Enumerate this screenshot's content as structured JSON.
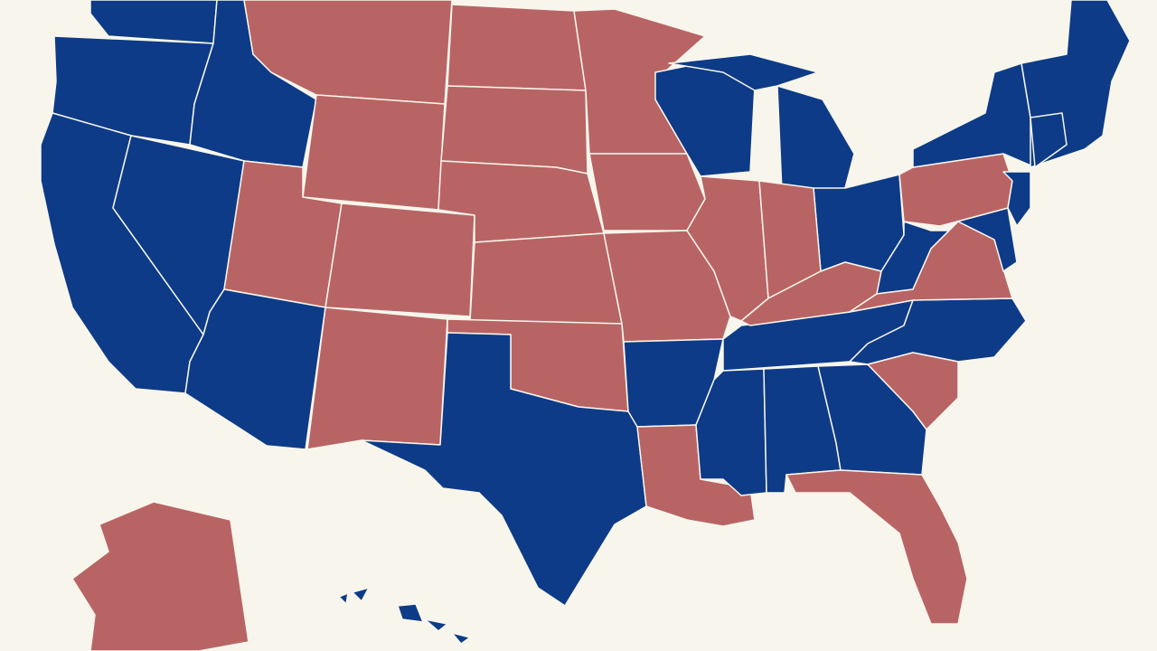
{
  "map": {
    "background": "#f8f6ec",
    "border": "#f8f6ec",
    "regions": [
      {
        "fill": "#0d3b87"
      },
      {
        "fill": "#0d3b87"
      },
      {
        "fill": "#0d3b87"
      },
      {
        "fill": "#0d3b87"
      },
      {
        "fill": "#0d3b87"
      },
      {
        "fill": "#b96464"
      },
      {
        "fill": "#b96464"
      },
      {
        "fill": "#b96464"
      },
      {
        "fill": "#0d3b87"
      },
      {
        "fill": "#b96464"
      },
      {
        "fill": "#b96464"
      },
      {
        "fill": "#b96464"
      },
      {
        "fill": "#b96464"
      },
      {
        "fill": "#b96464"
      },
      {
        "fill": "#b96464"
      },
      {
        "fill": "#b96464"
      },
      {
        "fill": "#0d3b87"
      },
      {
        "fill": "#b96464"
      },
      {
        "fill": "#b96464"
      },
      {
        "fill": "#b96464"
      },
      {
        "fill": "#0d3b87"
      },
      {
        "fill": "#b96464"
      },
      {
        "fill": "#0d3b87"
      },
      {
        "fill": "#b96464"
      },
      {
        "fill": "#0d3b87"
      },
      {
        "fill": "#0d3b87"
      },
      {
        "fill": "#b96464"
      },
      {
        "fill": "#0d3b87"
      },
      {
        "fill": "#b96464"
      },
      {
        "fill": "#0d3b87"
      },
      {
        "fill": "#0d3b87"
      },
      {
        "fill": "#0d3b87"
      },
      {
        "fill": "#0d3b87"
      },
      {
        "fill": "#b96464"
      },
      {
        "fill": "#b96464"
      },
      {
        "fill": "#0d3b87"
      },
      {
        "fill": "#b96464"
      },
      {
        "fill": "#0d3b87"
      },
      {
        "fill": "#b96464"
      },
      {
        "fill": "#0d3b87"
      },
      {
        "fill": "#0d3b87"
      },
      {
        "fill": "#0d3b87"
      },
      {
        "fill": "#0d3b87"
      },
      {
        "fill": "#b96464"
      },
      {
        "fill": "#0d3b87"
      }
    ]
  }
}
